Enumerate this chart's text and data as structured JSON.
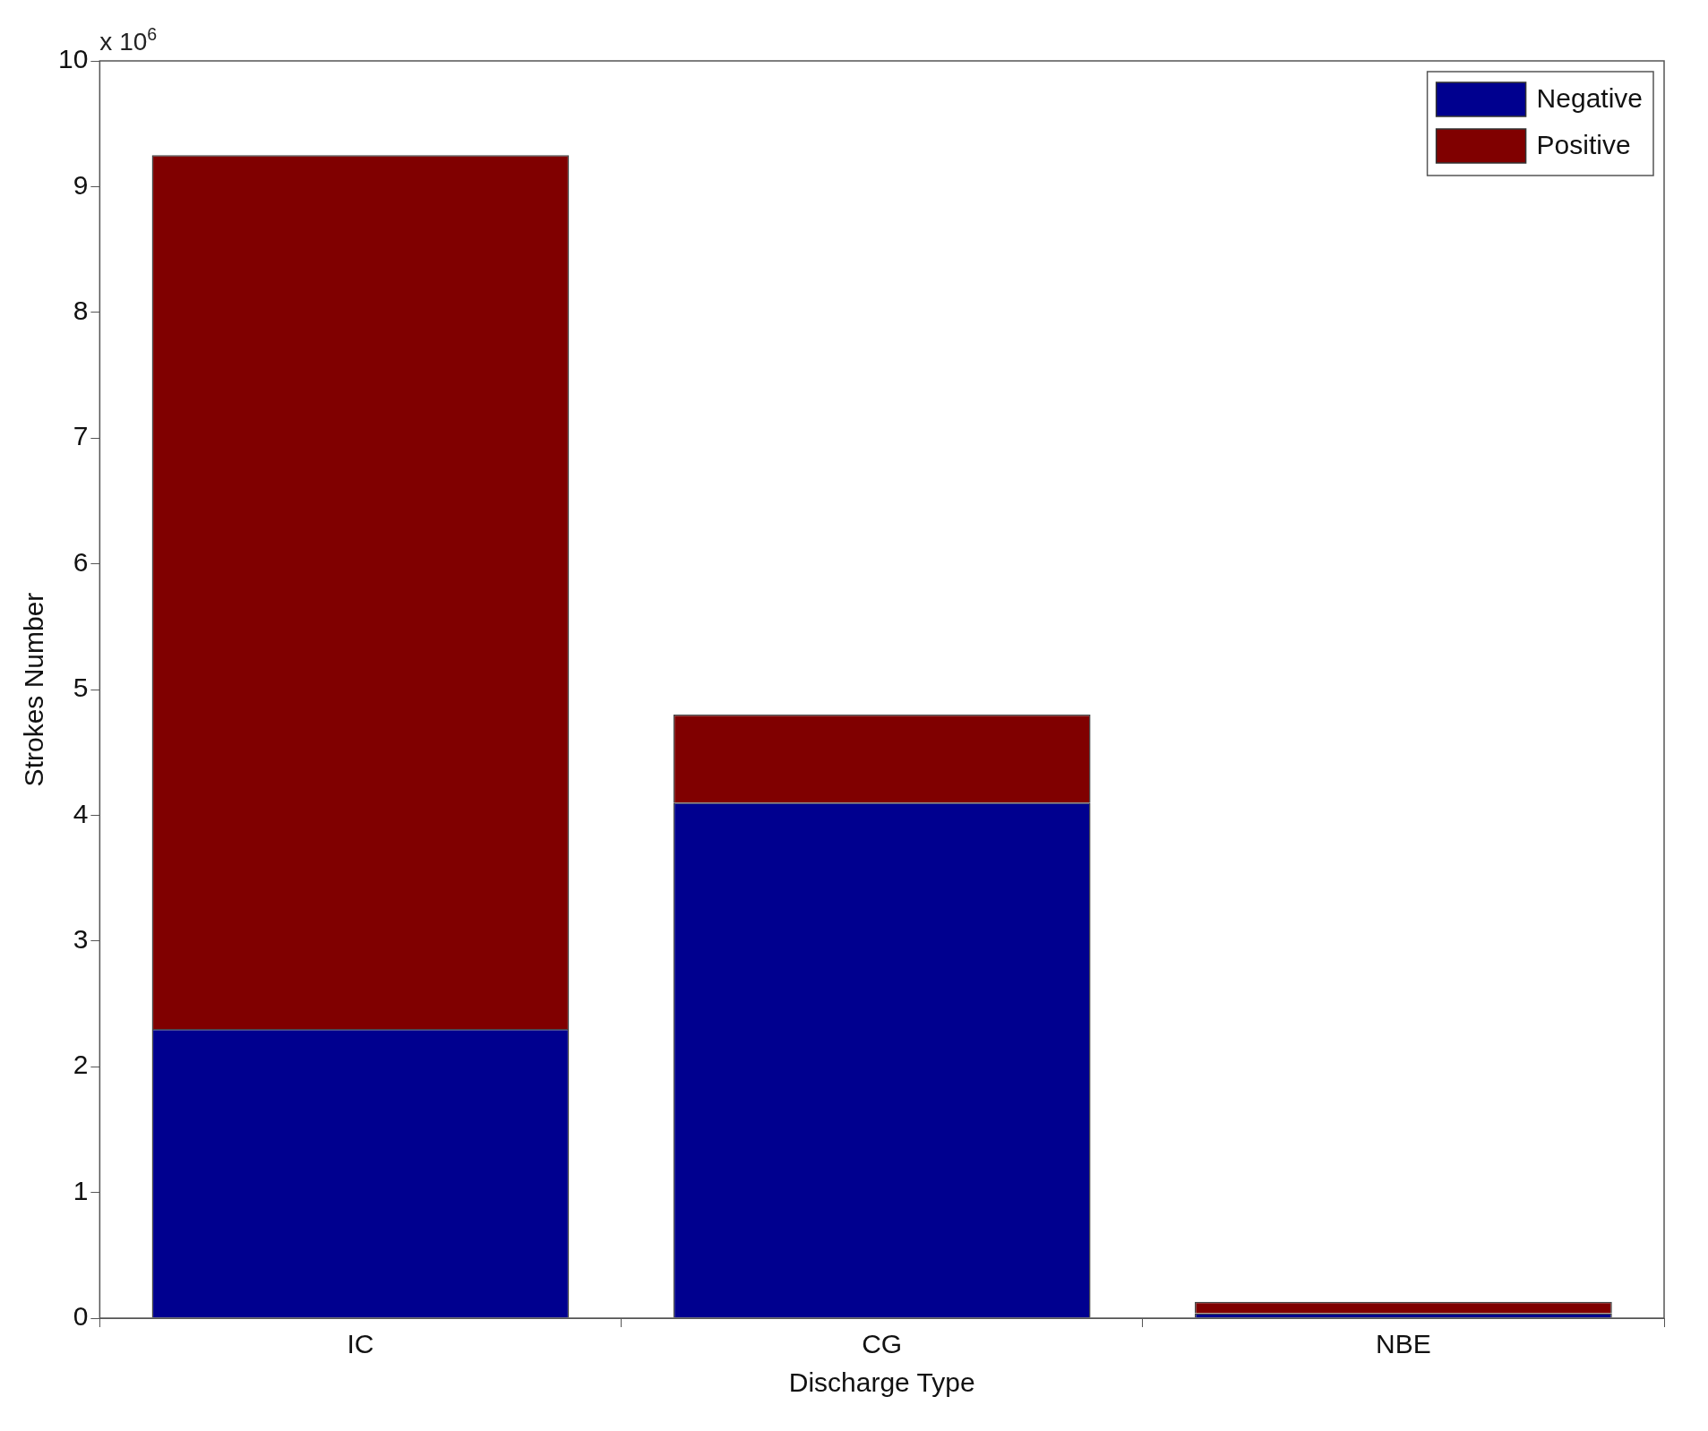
{
  "chart_data": {
    "type": "bar",
    "stacked": true,
    "xlabel": "Discharge Type",
    "ylabel": "Strokes Number",
    "categories": [
      "IC",
      "CG",
      "NBE"
    ],
    "series": [
      {
        "name": "Negative",
        "color": "#00008f",
        "values": [
          2.3,
          4.1,
          0.04
        ]
      },
      {
        "name": "Positive",
        "color": "#800000",
        "values": [
          6.95,
          0.7,
          0.09
        ]
      }
    ],
    "ylim": [
      0,
      10
    ],
    "yticks": [
      0,
      1,
      2,
      3,
      4,
      5,
      6,
      7,
      8,
      9,
      10
    ],
    "grid": false,
    "legend": "top right",
    "annotations": [
      "x 10$^{6}$"
    ]
  }
}
